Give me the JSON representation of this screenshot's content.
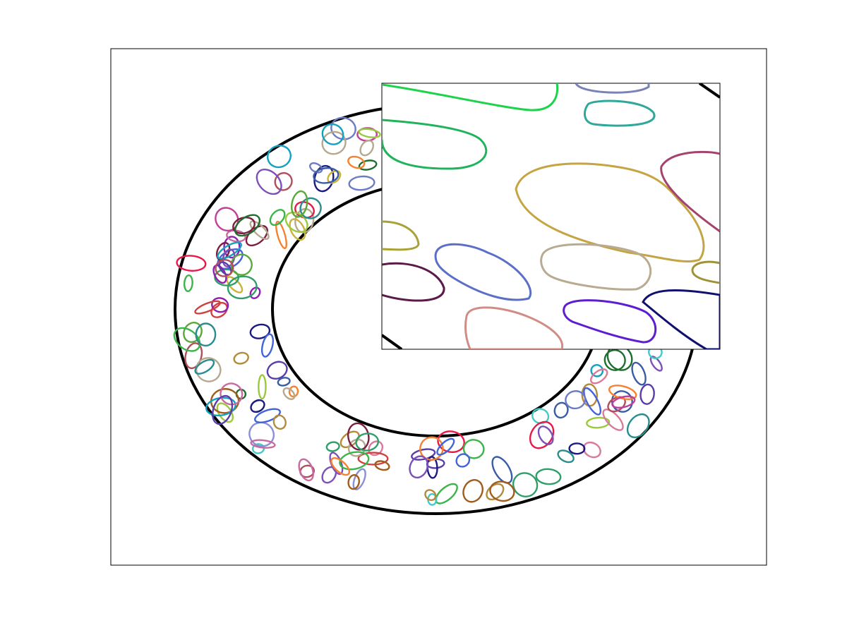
{
  "figure": {
    "domain_boundary_color": "#000000",
    "background": "#ffffff",
    "cell_count_main": 200,
    "has_zoom_inset": true,
    "palette": [
      "#e6194b",
      "#3cb44b",
      "#4363d8",
      "#f58231",
      "#911eb4",
      "#46c8c8",
      "#c86aa0",
      "#9ac93b",
      "#b04e5a",
      "#2a8c8c",
      "#b38b3c",
      "#5a3da8",
      "#1f6e2e",
      "#d97a9a",
      "#6b7bc4",
      "#7a1f3d",
      "#c9b33a",
      "#2f9e6b",
      "#8a8fd6",
      "#a15c1c",
      "#16a0c0",
      "#c0409a",
      "#5aa83a",
      "#d04040",
      "#7d4fb8",
      "#3a5ba6",
      "#b5a88f",
      "#1a1a80"
    ],
    "inset_cell_colors": [
      "#1dd34b",
      "#7a82b8",
      "#2fa89a",
      "#1fb45c",
      "#c4a443",
      "#a5436e",
      "#a9a236",
      "#5b6fc9",
      "#5a1a4a",
      "#b8ab92",
      "#a0923a",
      "#d28c86",
      "#5c1ed0",
      "#101070"
    ]
  }
}
